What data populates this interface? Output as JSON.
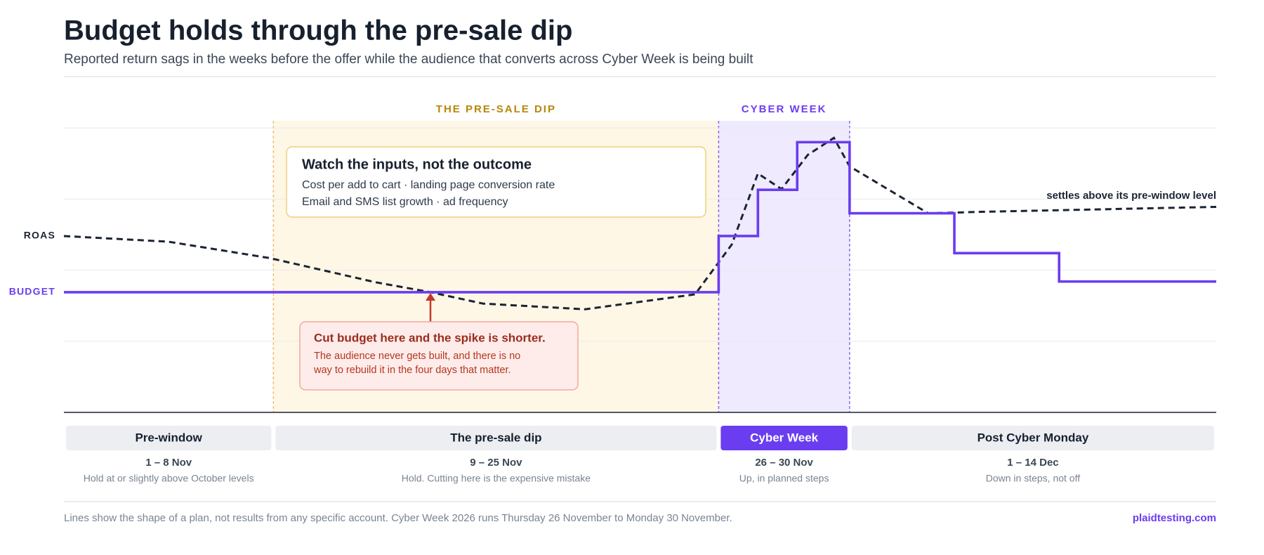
{
  "title": "Budget holds through the pre-sale dip",
  "subtitle": "Reported return sags in the weeks before the offer while the audience that converts across Cyber Week is being built",
  "chart_data": {
    "type": "line",
    "xlim": [
      0,
      44
    ],
    "ylim": [
      0,
      4.1
    ],
    "yticks": [
      1,
      2,
      3,
      4
    ],
    "grid": true,
    "series": [
      {
        "name": "ROAS",
        "color": "#1a2433",
        "dash": true,
        "x": [
          0,
          4,
          7.86,
          11.9,
          14,
          16,
          19.9,
          24.1,
          25.5,
          26.5,
          27.4,
          28.4,
          29.4,
          30,
          33,
          35,
          44
        ],
        "values": [
          2.48,
          2.4,
          2.17,
          1.83,
          1.69,
          1.53,
          1.45,
          1.66,
          2.36,
          3.36,
          3.14,
          3.62,
          3.86,
          3.46,
          2.8,
          2.82,
          2.89
        ]
      },
      {
        "name": "BUDGET",
        "color": "#6a3df0",
        "step": true,
        "x": [
          0,
          25,
          26.5,
          28,
          30,
          34,
          38,
          44
        ],
        "values": [
          1.69,
          2.48,
          3.13,
          3.8,
          2.8,
          2.24,
          1.84,
          1.84
        ]
      }
    ],
    "regions": [
      {
        "label": "THE PRE-SALE DIP",
        "start": 8,
        "end": 25,
        "color": "#b8860b",
        "fill": "#fff7e6",
        "border": "#f0c070"
      },
      {
        "label": "CYBER WEEK",
        "start": 25,
        "end": 30,
        "color": "#6d3ef0",
        "fill": "#efeafd",
        "border": "#8b6cf0"
      }
    ],
    "annotations": [
      "settles above its pre-window level"
    ],
    "callouts": [
      {
        "title": "Watch the inputs, not the outcome",
        "lines": [
          "Cost per add to cart · landing page conversion rate",
          "Email and SMS list growth · ad frequency"
        ]
      },
      {
        "title": "Cut budget here and the spike is shorter.",
        "lines": [
          "The audience never gets built, and there is no",
          "way to rebuild it in the four days that matter."
        ]
      }
    ]
  },
  "phases": [
    {
      "name": "Pre-window",
      "dates": "1 – 8 Nov",
      "note": "Hold at or slightly above October levels",
      "start": 0,
      "end": 8,
      "highlight": false
    },
    {
      "name": "The pre-sale dip",
      "dates": "9 – 25 Nov",
      "note": "Hold. Cutting here is the expensive mistake",
      "start": 8,
      "end": 25,
      "highlight": false
    },
    {
      "name": "Cyber Week",
      "dates": "26 – 30 Nov",
      "note": "Up, in planned steps",
      "start": 25,
      "end": 30,
      "highlight": true
    },
    {
      "name": "Post Cyber Monday",
      "dates": "1 – 14 Dec",
      "note": "Down in steps, not off",
      "start": 30,
      "end": 44,
      "highlight": false
    }
  ],
  "footer": {
    "note": "Lines show the shape of a plan, not results from any specific account. Cyber Week 2026 runs Thursday 26 November to Monday 30 November.",
    "source": "plaidtesting.com"
  }
}
